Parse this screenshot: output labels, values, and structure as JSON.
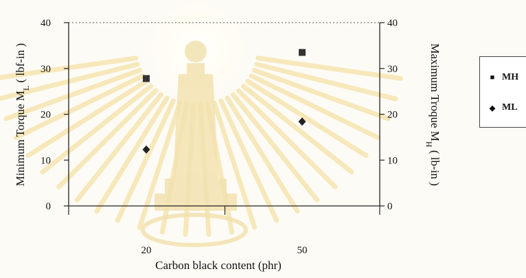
{
  "chart_data": {
    "type": "scatter",
    "categories": [
      "20",
      "50"
    ],
    "xlabel": "Carbon black content (phr)",
    "ylabel_left": "Minimum Torque M",
    "ylabel_left_sub": "L",
    "ylabel_left_unit": " ( lbf-in )",
    "ylabel_right": "Maximum Troque M",
    "ylabel_right_sub": "H",
    "ylabel_right_unit": " ( lb-in )",
    "ylim": [
      0,
      40
    ],
    "yticks": [
      0,
      10,
      20,
      30,
      40
    ],
    "grid": false,
    "legend_position": "right",
    "series": [
      {
        "name": "MH",
        "marker": "square",
        "color": "#333333",
        "values": [
          27.8,
          33.5
        ]
      },
      {
        "name": "ML",
        "marker": "diamond",
        "color": "#222222",
        "values": [
          12.3,
          18.4
        ]
      }
    ]
  }
}
